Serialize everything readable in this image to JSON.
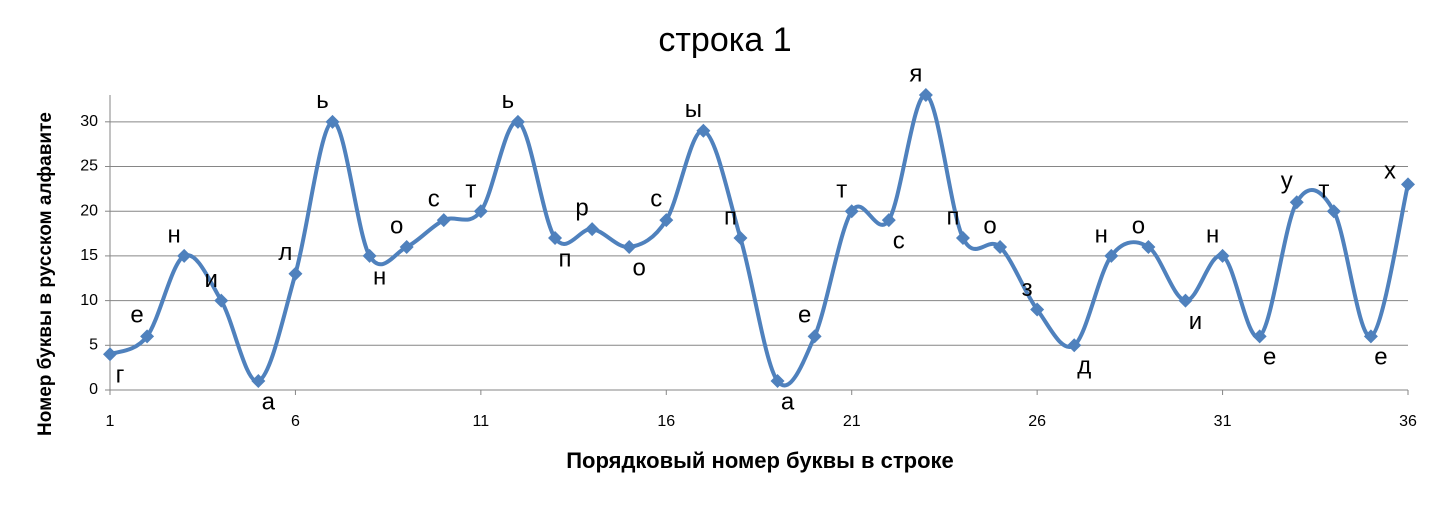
{
  "chart_data": {
    "type": "line",
    "title": "строка 1",
    "x_label": "Порядковый номер буквы в строке",
    "y_label": "Номер буквы в русском алфавите",
    "x": [
      1,
      2,
      3,
      4,
      5,
      6,
      7,
      8,
      9,
      10,
      11,
      12,
      13,
      14,
      15,
      16,
      17,
      18,
      19,
      20,
      21,
      22,
      23,
      24,
      25,
      26,
      27,
      28,
      29,
      30,
      31,
      32,
      33,
      34,
      35,
      36
    ],
    "series": [
      {
        "color": "#4f81bd",
        "values": [
          4,
          6,
          15,
          10,
          1,
          13,
          30,
          15,
          16,
          19,
          20,
          30,
          17,
          18,
          16,
          19,
          29,
          17,
          1,
          6,
          20,
          19,
          33,
          17,
          16,
          9,
          5,
          15,
          16,
          10,
          15,
          6,
          21,
          20,
          6,
          23
        ],
        "point_labels": [
          "г",
          "е",
          "н",
          "и",
          "а",
          "л",
          "ь",
          "н",
          "о",
          "с",
          "т",
          "ь",
          "п",
          "р",
          "о",
          "с",
          "ы",
          "п",
          "а",
          "е",
          "т",
          "с",
          "я",
          "п",
          "о",
          "з",
          "д",
          "н",
          "о",
          "и",
          "н",
          "е",
          "у",
          "т",
          "е",
          "х"
        ]
      }
    ],
    "xlim": [
      1,
      36
    ],
    "xticks": [
      1,
      6,
      11,
      16,
      21,
      26,
      31,
      36
    ],
    "ylim": [
      0,
      33
    ],
    "yticks": [
      0,
      5,
      10,
      15,
      20,
      25,
      30
    ],
    "grid": true,
    "smooth": true
  }
}
